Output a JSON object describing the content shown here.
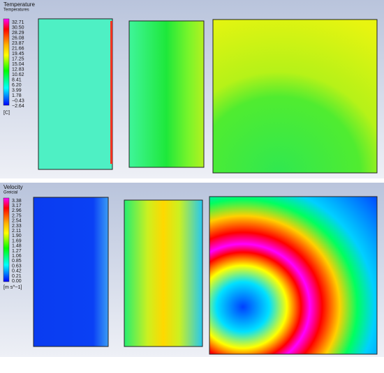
{
  "panels": [
    {
      "title": "Temperature",
      "subtitle": "Temperatures",
      "unit": "[C]",
      "ticks": [
        "32.71",
        "30.50",
        "28.29",
        "26.08",
        "23.87",
        "21.66",
        "19.45",
        "17.25",
        "15.04",
        "12.83",
        "10.62",
        "8.41",
        "6.20",
        "3.99",
        "1.78",
        "−0.43",
        "−2.64"
      ]
    },
    {
      "title": "Velocity",
      "subtitle": "Greicial",
      "unit": "[m s^−1]",
      "ticks": [
        "3.38",
        "3.17",
        "2.96",
        "2.75",
        "2.54",
        "2.33",
        "2.11",
        "1.90",
        "1.69",
        "1.48",
        "1.27",
        "1.06",
        "0.85",
        "0.63",
        "0.42",
        "0.21",
        "0.00"
      ]
    }
  ]
}
